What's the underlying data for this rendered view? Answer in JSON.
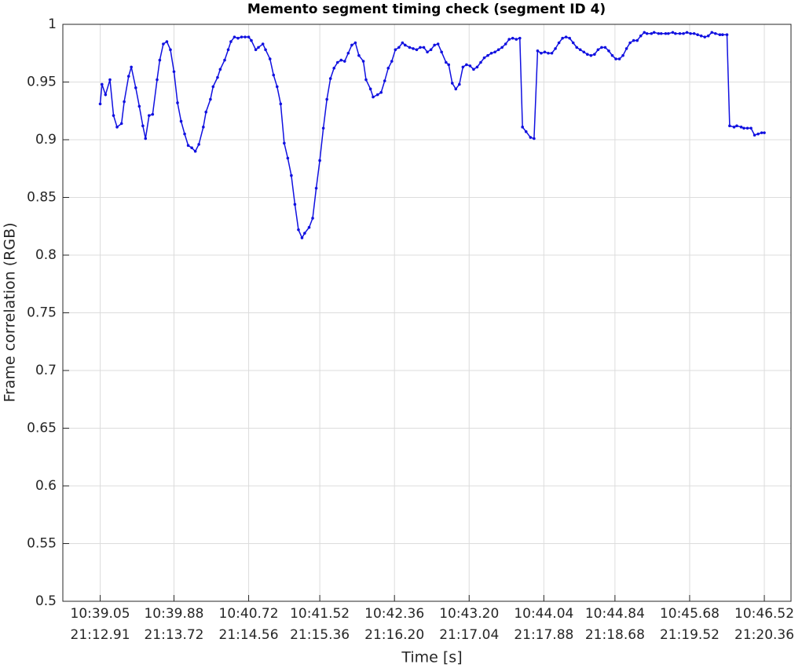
{
  "chart_data": {
    "type": "line",
    "title": "Memento segment timing check (segment ID 4)",
    "xlabel": "Time [s]",
    "ylabel": "Frame correlation (RGB)",
    "grid": true,
    "xlim": [
      638.63,
      646.82
    ],
    "ylim": [
      0.5,
      1
    ],
    "yticks": [
      0.5,
      0.55,
      0.6,
      0.65,
      0.7,
      0.75,
      0.8,
      0.85,
      0.9,
      0.95,
      1
    ],
    "xticks": [
      {
        "value": 639.05,
        "label": [
          "10:39.05",
          "21:12.91"
        ]
      },
      {
        "value": 639.88,
        "label": [
          "10:39.88",
          "21:13.72"
        ]
      },
      {
        "value": 640.72,
        "label": [
          "10:40.72",
          "21:14.56"
        ]
      },
      {
        "value": 641.52,
        "label": [
          "10:41.52",
          "21:15.36"
        ]
      },
      {
        "value": 642.36,
        "label": [
          "10:42.36",
          "21:16.20"
        ]
      },
      {
        "value": 643.2,
        "label": [
          "10:43.20",
          "21:17.04"
        ]
      },
      {
        "value": 644.04,
        "label": [
          "10:44.04",
          "21:17.88"
        ]
      },
      {
        "value": 644.84,
        "label": [
          "10:44.84",
          "21:18.68"
        ]
      },
      {
        "value": 645.68,
        "label": [
          "10:45.68",
          "21:19.52"
        ]
      },
      {
        "value": 646.52,
        "label": [
          "10:46.52",
          "21:20.36"
        ]
      }
    ],
    "x": [
      639.05,
      639.07,
      639.11,
      639.16,
      639.2,
      639.24,
      639.29,
      639.32,
      639.37,
      639.4,
      639.45,
      639.49,
      639.53,
      639.56,
      639.6,
      639.64,
      639.69,
      639.72,
      639.76,
      639.8,
      639.84,
      639.88,
      639.92,
      639.96,
      640.0,
      640.04,
      640.08,
      640.12,
      640.16,
      640.21,
      640.24,
      640.29,
      640.32,
      640.37,
      640.4,
      640.45,
      640.49,
      640.52,
      640.56,
      640.6,
      640.64,
      640.68,
      640.72,
      640.75,
      640.8,
      640.83,
      640.88,
      640.91,
      640.96,
      641.0,
      641.04,
      641.08,
      641.12,
      641.16,
      641.2,
      641.24,
      641.28,
      641.32,
      641.35,
      641.4,
      641.44,
      641.48,
      641.52,
      641.56,
      641.6,
      641.64,
      641.68,
      641.72,
      641.76,
      641.8,
      641.84,
      641.88,
      641.92,
      641.96,
      642.01,
      642.04,
      642.09,
      642.12,
      642.17,
      642.21,
      642.25,
      642.29,
      642.33,
      642.37,
      642.41,
      642.45,
      642.48,
      642.53,
      642.57,
      642.61,
      642.65,
      642.69,
      642.73,
      642.77,
      642.81,
      642.85,
      642.89,
      642.94,
      642.97,
      643.01,
      643.05,
      643.09,
      643.13,
      643.17,
      643.21,
      643.25,
      643.29,
      643.33,
      643.37,
      643.41,
      643.45,
      643.49,
      643.53,
      643.57,
      643.61,
      643.65,
      643.69,
      643.73,
      643.77,
      643.8,
      643.84,
      643.89,
      643.93,
      643.97,
      644.01,
      644.05,
      644.09,
      644.13,
      644.17,
      644.21,
      644.25,
      644.29,
      644.33,
      644.37,
      644.41,
      644.45,
      644.49,
      644.53,
      644.57,
      644.61,
      644.65,
      644.69,
      644.73,
      644.77,
      644.81,
      644.85,
      644.89,
      644.93,
      644.97,
      645.01,
      645.05,
      645.09,
      645.13,
      645.17,
      645.2,
      645.25,
      645.28,
      645.33,
      645.36,
      645.41,
      645.44,
      645.49,
      645.52,
      645.57,
      645.61,
      645.65,
      645.69,
      645.73,
      645.77,
      645.81,
      645.85,
      645.89,
      645.93,
      645.97,
      646.02,
      646.05,
      646.1,
      646.13,
      646.18,
      646.21,
      646.26,
      646.29,
      646.33,
      646.37,
      646.41,
      646.45,
      646.49,
      646.52
    ],
    "series": [
      {
        "name": "Frame correlation",
        "color": "#1010e0",
        "values": [
          0.931,
          0.948,
          0.939,
          0.952,
          0.921,
          0.911,
          0.914,
          0.933,
          0.955,
          0.963,
          0.945,
          0.929,
          0.912,
          0.901,
          0.921,
          0.922,
          0.952,
          0.969,
          0.983,
          0.985,
          0.978,
          0.959,
          0.932,
          0.916,
          0.905,
          0.895,
          0.893,
          0.89,
          0.896,
          0.911,
          0.924,
          0.935,
          0.946,
          0.954,
          0.961,
          0.969,
          0.978,
          0.985,
          0.989,
          0.988,
          0.989,
          0.989,
          0.989,
          0.986,
          0.978,
          0.98,
          0.983,
          0.978,
          0.97,
          0.956,
          0.946,
          0.931,
          0.897,
          0.884,
          0.869,
          0.844,
          0.822,
          0.815,
          0.819,
          0.824,
          0.832,
          0.858,
          0.882,
          0.91,
          0.935,
          0.953,
          0.962,
          0.967,
          0.969,
          0.968,
          0.975,
          0.982,
          0.984,
          0.973,
          0.968,
          0.952,
          0.944,
          0.937,
          0.939,
          0.941,
          0.951,
          0.962,
          0.968,
          0.978,
          0.98,
          0.984,
          0.982,
          0.98,
          0.979,
          0.978,
          0.98,
          0.98,
          0.976,
          0.978,
          0.982,
          0.983,
          0.976,
          0.967,
          0.965,
          0.949,
          0.944,
          0.948,
          0.963,
          0.965,
          0.964,
          0.961,
          0.963,
          0.967,
          0.971,
          0.973,
          0.975,
          0.976,
          0.978,
          0.98,
          0.983,
          0.987,
          0.988,
          0.987,
          0.988,
          0.911,
          0.907,
          0.902,
          0.901,
          0.977,
          0.975,
          0.976,
          0.975,
          0.975,
          0.979,
          0.984,
          0.988,
          0.989,
          0.988,
          0.984,
          0.98,
          0.978,
          0.976,
          0.974,
          0.973,
          0.974,
          0.978,
          0.98,
          0.98,
          0.977,
          0.973,
          0.97,
          0.97,
          0.973,
          0.979,
          0.984,
          0.986,
          0.986,
          0.99,
          0.993,
          0.992,
          0.992,
          0.993,
          0.992,
          0.992,
          0.992,
          0.992,
          0.993,
          0.992,
          0.992,
          0.992,
          0.993,
          0.992,
          0.992,
          0.991,
          0.99,
          0.989,
          0.99,
          0.993,
          0.992,
          0.991,
          0.991,
          0.991,
          0.912,
          0.911,
          0.912,
          0.911,
          0.91,
          0.91,
          0.91,
          0.904,
          0.905,
          0.906,
          0.906
        ]
      }
    ]
  }
}
